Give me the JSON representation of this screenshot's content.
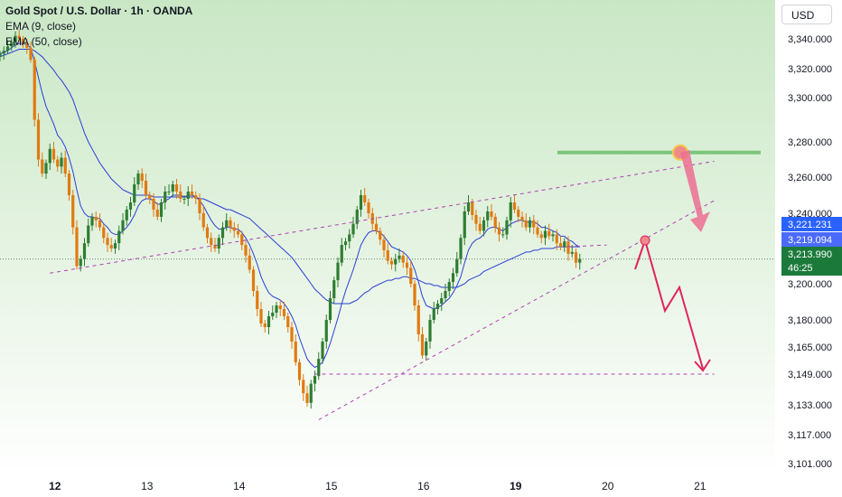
{
  "legend": {
    "symbol": "Gold Spot / U.S. Dollar · 1h · OANDA",
    "ema_fast": "EMA (9, close)",
    "ema_slow": "EMA (50, close)"
  },
  "currency_button": "USD",
  "colors": {
    "bull": "#2e7d32",
    "bear": "#e07a10",
    "ema_line": "#2b3fd6",
    "pattern": "#b23fb5",
    "resistance": "#7cc57c",
    "projection": "#e0245e",
    "bg_top": "#cde9c9",
    "bg_bottom": "#ffffff"
  },
  "chart_data": {
    "type": "candlestick",
    "x_ticks": [
      {
        "label": "12",
        "bold": true,
        "index": 3
      },
      {
        "label": "13",
        "bold": false,
        "index": 27
      },
      {
        "label": "14",
        "bold": false,
        "index": 51
      },
      {
        "label": "15",
        "bold": false,
        "index": 75
      },
      {
        "label": "16",
        "bold": false,
        "index": 99
      },
      {
        "label": "19",
        "bold": true,
        "index": 123
      },
      {
        "label": "20",
        "bold": false,
        "index": 147
      },
      {
        "label": "21",
        "bold": false,
        "index": 171
      }
    ],
    "y_ticks": [
      "3,340.000",
      "3,320.000",
      "3,300.000",
      "3,280.000",
      "3,260.000",
      "3,240.000",
      "3,200.000",
      "3,180.000",
      "3,165.000",
      "3,149.000",
      "3,133.000",
      "3,117.000",
      "3,101.000"
    ],
    "price_labels": [
      {
        "value": "3,221.231",
        "price": 3221.231,
        "bg": "#2962ff"
      },
      {
        "value": "3,219.094",
        "price": 3219.094,
        "bg": "#4b6bff"
      },
      {
        "value": "3,213.990",
        "price": 3213.99,
        "bg": "#1b7a3a",
        "sub": "46:25"
      }
    ],
    "close": [
      3330,
      3332,
      3335,
      3338,
      3342,
      3340,
      3337,
      3334,
      3326,
      3290,
      3270,
      3262,
      3268,
      3276,
      3270,
      3266,
      3271,
      3262,
      3250,
      3232,
      3210,
      3214,
      3223,
      3233,
      3238,
      3236,
      3232,
      3226,
      3222,
      3220,
      3223,
      3230,
      3236,
      3242,
      3246,
      3256,
      3262,
      3258,
      3250,
      3248,
      3242,
      3238,
      3246,
      3252,
      3252,
      3256,
      3252,
      3248,
      3248,
      3252,
      3250,
      3248,
      3240,
      3232,
      3226,
      3222,
      3220,
      3226,
      3232,
      3236,
      3232,
      3230,
      3228,
      3222,
      3216,
      3208,
      3196,
      3186,
      3178,
      3176,
      3182,
      3184,
      3188,
      3186,
      3182,
      3176,
      3168,
      3156,
      3146,
      3139,
      3134,
      3144,
      3148,
      3158,
      3168,
      3180,
      3192,
      3202,
      3212,
      3222,
      3224,
      3228,
      3234,
      3242,
      3250,
      3246,
      3240,
      3234,
      3230,
      3225,
      3219,
      3213,
      3211,
      3214,
      3216,
      3212,
      3209,
      3200,
      3188,
      3172,
      3160,
      3168,
      3180,
      3186,
      3189,
      3192,
      3196,
      3201,
      3206,
      3214,
      3226,
      3241,
      3246,
      3239,
      3234,
      3230,
      3236,
      3241,
      3238,
      3232,
      3228,
      3228,
      3236,
      3246,
      3242,
      3238,
      3236,
      3232,
      3236,
      3232,
      3228,
      3226,
      3230,
      3227,
      3228,
      3223,
      3221,
      3224,
      3217,
      3218,
      3212,
      3214
    ],
    "ema_fast": [
      3330,
      3331,
      3332,
      3334,
      3336,
      3337,
      3337,
      3336,
      3334,
      3325,
      3314,
      3303,
      3296,
      3292,
      3288,
      3283,
      3281,
      3277,
      3271,
      3263,
      3253,
      3244,
      3240,
      3238,
      3238,
      3237,
      3237,
      3234,
      3232,
      3229,
      3228,
      3228,
      3230,
      3232,
      3235,
      3239,
      3244,
      3247,
      3248,
      3248,
      3247,
      3245,
      3245,
      3247,
      3248,
      3250,
      3250,
      3250,
      3249,
      3250,
      3250,
      3249,
      3247,
      3244,
      3240,
      3236,
      3233,
      3231,
      3231,
      3232,
      3232,
      3231,
      3231,
      3229,
      3226,
      3222,
      3217,
      3211,
      3204,
      3199,
      3195,
      3193,
      3192,
      3191,
      3189,
      3186,
      3182,
      3177,
      3170,
      3164,
      3158,
      3155,
      3153,
      3154,
      3156,
      3161,
      3167,
      3174,
      3181,
      3189,
      3196,
      3202,
      3208,
      3215,
      3222,
      3226,
      3229,
      3230,
      3230,
      3229,
      3227,
      3224,
      3221,
      3220,
      3219,
      3218,
      3216,
      3213,
      3208,
      3201,
      3193,
      3188,
      3187,
      3186,
      3187,
      3188,
      3190,
      3192,
      3195,
      3199,
      3204,
      3212,
      3219,
      3223,
      3225,
      3226,
      3228,
      3231,
      3232,
      3232,
      3231,
      3230,
      3232,
      3234,
      3235,
      3236,
      3236,
      3235,
      3235,
      3235,
      3234,
      3232,
      3232,
      3231,
      3230,
      3229,
      3227,
      3227,
      3225,
      3224,
      3222,
      3221
    ],
    "ema_slow": [
      3328,
      3329,
      3330,
      3331,
      3332,
      3333,
      3333,
      3333,
      3333,
      3332,
      3330,
      3328,
      3325,
      3322,
      3319,
      3315,
      3312,
      3308,
      3304,
      3299,
      3294,
      3289,
      3284,
      3280,
      3276,
      3272,
      3268,
      3265,
      3262,
      3259,
      3257,
      3255,
      3253,
      3252,
      3251,
      3250,
      3250,
      3250,
      3250,
      3250,
      3249,
      3249,
      3249,
      3249,
      3249,
      3249,
      3249,
      3249,
      3249,
      3249,
      3249,
      3249,
      3248,
      3248,
      3247,
      3246,
      3245,
      3244,
      3243,
      3242,
      3242,
      3241,
      3240,
      3239,
      3238,
      3237,
      3235,
      3233,
      3231,
      3229,
      3227,
      3225,
      3223,
      3221,
      3219,
      3217,
      3215,
      3212,
      3209,
      3206,
      3203,
      3200,
      3197,
      3195,
      3193,
      3191,
      3190,
      3189,
      3189,
      3189,
      3189,
      3189,
      3190,
      3191,
      3193,
      3195,
      3196,
      3198,
      3199,
      3200,
      3201,
      3202,
      3202,
      3203,
      3203,
      3204,
      3204,
      3203,
      3203,
      3202,
      3201,
      3200,
      3200,
      3199,
      3199,
      3198,
      3198,
      3198,
      3198,
      3198,
      3199,
      3200,
      3202,
      3203,
      3204,
      3205,
      3207,
      3208,
      3209,
      3210,
      3211,
      3212,
      3213,
      3214,
      3215,
      3216,
      3217,
      3218,
      3218,
      3219,
      3219,
      3220,
      3220,
      3220,
      3220,
      3221,
      3221,
      3221,
      3221,
      3221,
      3221,
      3221
    ],
    "current_price": 3213.99,
    "annotations": {
      "resistance_level": 3274,
      "support_level": 3149,
      "upper_channel": [
        [
          13,
          3206
        ],
        [
          186,
          3269
        ]
      ],
      "lower_channel": [
        [
          83,
          3125
        ],
        [
          186,
          3247
        ]
      ],
      "target_line": [
        [
          82,
          3149
        ],
        [
          186,
          3149
        ]
      ],
      "wedge_top_dashed": [
        [
          148,
          3221
        ],
        [
          158,
          3222
        ]
      ]
    }
  }
}
